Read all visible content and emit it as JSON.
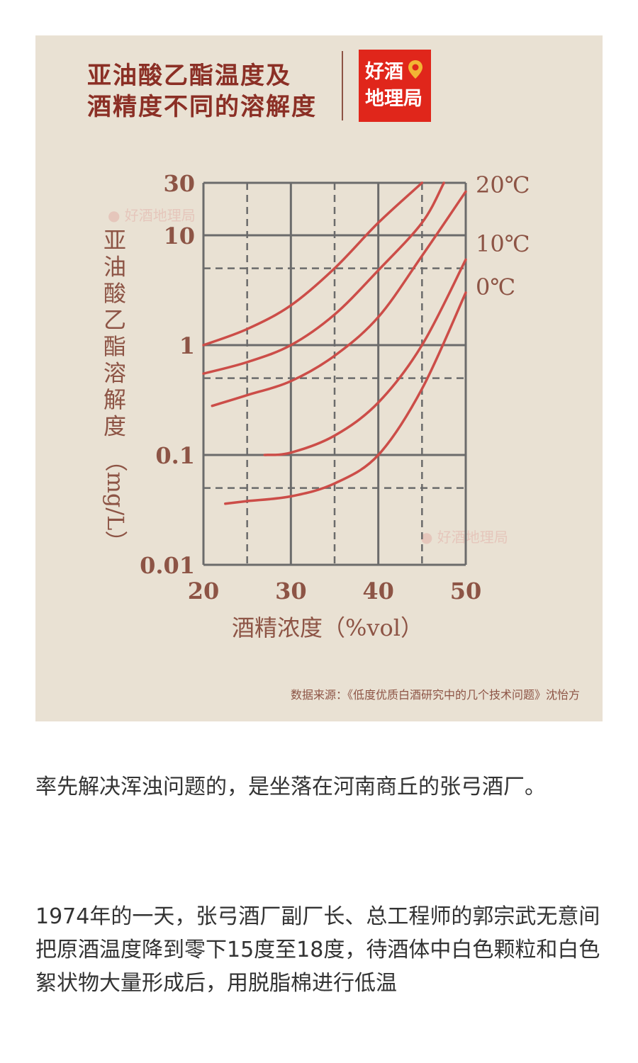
{
  "colors": {
    "card_bg": "#e9e1d3",
    "title": "#8b2f25",
    "axis_text": "#8d5445",
    "grid": "#6b6b6b",
    "curve": "#cc4d48",
    "brand_bg": "#e0261b",
    "body_text": "#333333"
  },
  "infographic": {
    "title_lines": [
      "亚油酸乙酯温度及",
      "酒精度不同的溶解度"
    ],
    "brand_lines": [
      "好酒",
      "地理局"
    ],
    "watermark": "好酒地理局",
    "source": "数据来源：《低度优质白酒研究中的几个技术问题》沈怡方"
  },
  "chart_data": {
    "type": "line",
    "ylabel": "亚油酸乙酯溶解度（mg/L）",
    "xlabel": "酒精浓度（%vol）",
    "y_scale": "log",
    "xlim": [
      20,
      50
    ],
    "ylim": [
      0.01,
      30
    ],
    "x_ticks": [
      20,
      30,
      40,
      50
    ],
    "x_tick_labels": [
      "20",
      "30",
      "40",
      "50"
    ],
    "y_ticks": [
      0.01,
      0.1,
      1,
      10,
      30
    ],
    "y_tick_labels": [
      "0.01",
      "0.1",
      "1",
      "10",
      "30"
    ],
    "grid": true,
    "series": [
      {
        "name": "20℃",
        "x": [
          20,
          25,
          30,
          35,
          40,
          45
        ],
        "y": [
          1.0,
          1.4,
          2.3,
          5.0,
          13,
          30
        ]
      },
      {
        "name": "",
        "x": [
          20,
          25,
          30,
          35,
          40,
          45,
          47.5
        ],
        "y": [
          0.55,
          0.7,
          1.0,
          1.9,
          4.8,
          13,
          30
        ]
      },
      {
        "name": "10℃",
        "x": [
          21,
          25,
          30,
          35,
          40,
          45,
          50
        ],
        "y": [
          0.28,
          0.35,
          0.47,
          0.8,
          1.8,
          6.5,
          25
        ]
      },
      {
        "name": "",
        "x": [
          27,
          30,
          35,
          40,
          45,
          50
        ],
        "y": [
          0.1,
          0.105,
          0.15,
          0.3,
          1.0,
          6.0
        ]
      },
      {
        "name": "0℃",
        "x": [
          22.5,
          25,
          30,
          35,
          40,
          45,
          50
        ],
        "y": [
          0.036,
          0.038,
          0.042,
          0.055,
          0.1,
          0.4,
          3.0
        ]
      }
    ]
  },
  "article": {
    "paragraphs": [
      "率先解决浑浊问题的，是坐落在河南商丘的张弓酒厂。",
      "1974年的一天，张弓酒厂副厂长、总工程师的郭宗武无意间把原酒温度降到零下15度至18度，待酒体中白色颗粒和白色絮状物大量形成后，用脱脂棉进行低温"
    ]
  }
}
